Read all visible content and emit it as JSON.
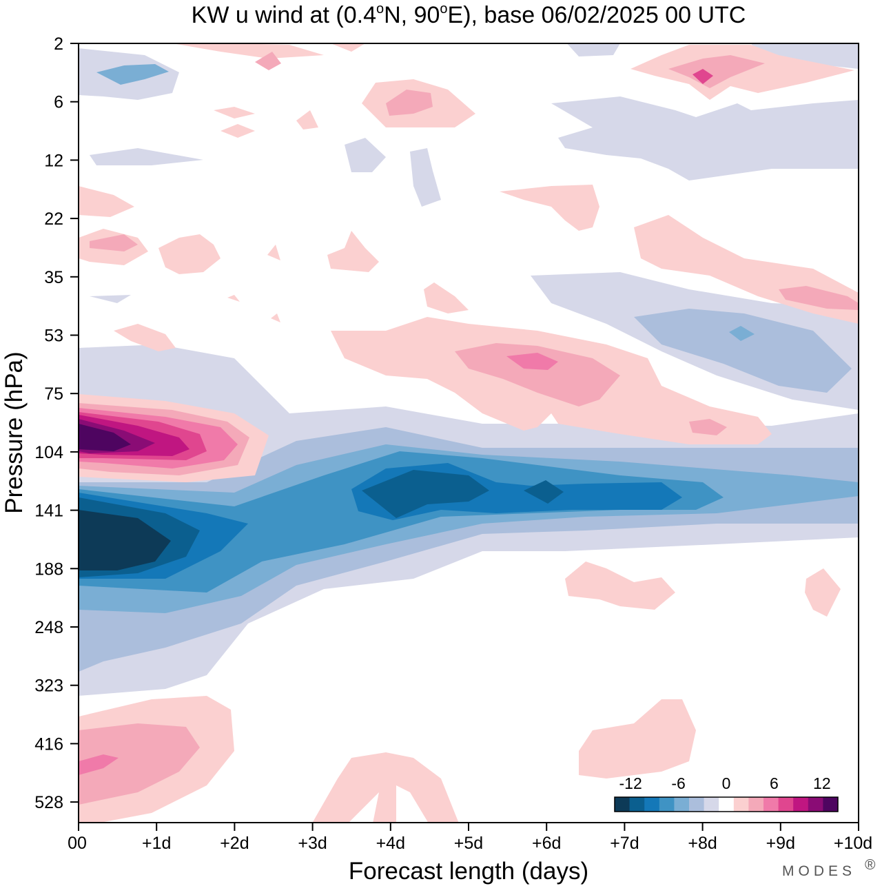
{
  "chart_data": {
    "type": "heatmap",
    "title_parts": [
      "KW u wind at (0.4",
      "o",
      "N, 90",
      "o",
      "E),  base 06/02/2025  00 UTC"
    ],
    "xlabel": "Forecast length (days)",
    "ylabel": "Pressure (hPa)",
    "x_ticks": [
      "00",
      "+1d",
      "+2d",
      "+3d",
      "+4d",
      "+5d",
      "+6d",
      "+7d",
      "+8d",
      "+9d",
      "+10d"
    ],
    "xlim": [
      0,
      10
    ],
    "y_ticks": [
      "2",
      "6",
      "12",
      "22",
      "35",
      "53",
      "75",
      "104",
      "141",
      "188",
      "248",
      "323",
      "416",
      "528"
    ],
    "y_scale": "log-pressure (inverted)",
    "ylim_hPa": [
      2,
      650
    ],
    "colorbar": {
      "tick_labels": [
        "-12",
        "-6",
        "0",
        "6",
        "12"
      ],
      "tick_values": [
        -12,
        -6,
        0,
        6,
        12
      ],
      "levels": [
        -14,
        -12,
        -10,
        -8,
        -6,
        -4,
        -2,
        -1,
        1,
        2,
        4,
        6,
        8,
        10,
        12,
        14
      ],
      "colors": [
        "#0d3a57",
        "#0b5f8f",
        "#1478b8",
        "#3f93c4",
        "#7aaed4",
        "#abbedc",
        "#d6d8e9",
        "#ffffff",
        "#fbd0d0",
        "#f4a9b9",
        "#f07aa9",
        "#e0468f",
        "#c01681",
        "#8a0c75",
        "#4e0560"
      ]
    },
    "features": [
      {
        "kind": "negative core",
        "x_days": [
          0,
          1.1
        ],
        "p_hPa": [
          135,
          190
        ],
        "min_value": -14
      },
      {
        "kind": "negative band",
        "x_days": [
          0,
          10
        ],
        "p_hPa": [
          100,
          260
        ],
        "approx_value": -10
      },
      {
        "kind": "negative secondary max",
        "x_days": [
          3.5,
          5.5
        ],
        "p_hPa": [
          110,
          135
        ],
        "approx_value": -11
      },
      {
        "kind": "positive core",
        "x_days": [
          0,
          0.6
        ],
        "p_hPa": [
          90,
          110
        ],
        "max_value": 14
      },
      {
        "kind": "positive band",
        "x_days": [
          0,
          2.4
        ],
        "p_hPa": [
          75,
          125
        ],
        "approx_value": 10
      },
      {
        "kind": "positive patch",
        "x_days": [
          3.2,
          8.8
        ],
        "p_hPa": [
          50,
          100
        ],
        "approx_value": 5
      },
      {
        "kind": "negative patch",
        "x_days": [
          7,
          10
        ],
        "p_hPa": [
          45,
          75
        ],
        "approx_value": -4
      },
      {
        "kind": "positive patch",
        "x_days": [
          0,
          2
        ],
        "p_hPa": [
          330,
          600
        ],
        "approx_value": 5
      },
      {
        "kind": "positive patch",
        "x_days": [
          6.5,
          7.8
        ],
        "p_hPa": [
          340,
          520
        ],
        "approx_value": 1.5
      },
      {
        "kind": "positive patch",
        "x_days": [
          7,
          10
        ],
        "p_hPa": [
          2,
          5
        ],
        "approx_value": 5
      }
    ]
  },
  "brand": "MODES",
  "brand_mark": "®"
}
